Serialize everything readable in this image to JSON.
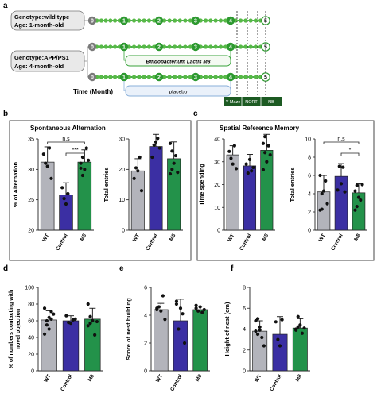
{
  "panel_labels": [
    "a",
    "b",
    "c",
    "d",
    "e",
    "f"
  ],
  "timeline": {
    "group1_lines": [
      "Genotype:wild type",
      "Age: 1-month-old"
    ],
    "group2_lines": [
      "Genotype:APP/PS1",
      "Age: 4-month-old"
    ],
    "time_label": "Time (Month)",
    "treatment_label": "Bifidobacterium Lactis M8",
    "placebo_label": "placebo",
    "test_labels": [
      "Y Maze",
      "NORT",
      "NB"
    ],
    "month_labels": [
      "0",
      "1",
      "2",
      "3",
      "4",
      "5"
    ],
    "colors": {
      "line": "#2e9e35",
      "dot": "#57b947",
      "node": "#2d9930",
      "gray": "#7a7a7a",
      "dark_green": "#1c5a22"
    }
  },
  "section_titles": {
    "b": "Spontaneous Alternation",
    "c": "Spatial Reference Memory"
  },
  "significance": {
    "ns": "n.s",
    "b_stars": "***",
    "c_star": "*"
  },
  "bar_colors": {
    "WT": "#b3b4bb",
    "Control": "#3b2fa3",
    "M8": "#23924a"
  },
  "chart_data": [
    {
      "id": "b1",
      "type": "bar",
      "categories": [
        "WT",
        "Control",
        "M8"
      ],
      "values": [
        31.2,
        25.8,
        31.2
      ],
      "errors": [
        2.5,
        2.0,
        2.0
      ],
      "ylabel": "% of Alternation",
      "ylim": [
        20,
        35
      ],
      "yticks": [
        20,
        25,
        30,
        35
      ],
      "points": [
        [
          32.5,
          31,
          30.5,
          33.5,
          28.5
        ],
        [
          27,
          25.2,
          24.3,
          26
        ],
        [
          31,
          32,
          30,
          33.5,
          31.5,
          30.2,
          29
        ]
      ]
    },
    {
      "id": "b2",
      "type": "bar",
      "categories": [
        "WT",
        "Control",
        "M8"
      ],
      "values": [
        19.5,
        27.5,
        23.5
      ],
      "errors": [
        4,
        4.5,
        5.5
      ],
      "ylabel": "Total entries",
      "ylim": [
        0,
        30
      ],
      "yticks": [
        0,
        10,
        20,
        30
      ],
      "points": [
        [
          17,
          20.5,
          19.5,
          24,
          13
        ],
        [
          24,
          28,
          29,
          30.2,
          27
        ],
        [
          18.5,
          26,
          22,
          24.5,
          19,
          28.5,
          20
        ]
      ]
    },
    {
      "id": "c1",
      "type": "bar",
      "categories": [
        "WT",
        "Control",
        "M8"
      ],
      "values": [
        33,
        28.2,
        35
      ],
      "errors": [
        4,
        5,
        8
      ],
      "ylabel": "Time spending",
      "ylim": [
        0,
        40
      ],
      "yticks": [
        0,
        10,
        20,
        30,
        40
      ],
      "points": [
        [
          34.5,
          31.5,
          29,
          37,
          27
        ],
        [
          29,
          25,
          31,
          26,
          27.5
        ],
        [
          38,
          34,
          30,
          37,
          33,
          26.5,
          41
        ]
      ]
    },
    {
      "id": "c2",
      "type": "bar",
      "categories": [
        "WT",
        "Control",
        "M8"
      ],
      "values": [
        4.2,
        5.9,
        4.1
      ],
      "errors": [
        1.8,
        1.4,
        1.0
      ],
      "ylabel": "Total entries",
      "ylim": [
        0,
        10
      ],
      "yticks": [
        0,
        2,
        4,
        6,
        8,
        10
      ],
      "points": [
        [
          2.2,
          2.3,
          4.3,
          5.4,
          2.9,
          6.0,
          4.0
        ],
        [
          4.4,
          7.0,
          5.1,
          6.9,
          4.2
        ],
        [
          4.3,
          2.6,
          3.6,
          3.3,
          5.0,
          2.2,
          4.9
        ]
      ]
    },
    {
      "id": "d",
      "type": "bar",
      "categories": [
        "WT",
        "Control",
        "M8"
      ],
      "values": [
        61,
        60,
        62
      ],
      "errors": [
        11,
        6,
        13
      ],
      "ylabel": "% of numbers contacting with novel objection",
      "ylim": [
        0,
        100
      ],
      "yticks": [
        0,
        20,
        40,
        60,
        80,
        100
      ],
      "points": [
        [
          75,
          60,
          50,
          71,
          68,
          44,
          55,
          64,
          62
        ],
        [
          66,
          58,
          57,
          61,
          62
        ],
        [
          80,
          57,
          60,
          43,
          59,
          54,
          65
        ]
      ]
    },
    {
      "id": "e",
      "type": "bar",
      "categories": [
        "WT",
        "Control",
        "M8"
      ],
      "values": [
        4.4,
        3.6,
        4.4
      ],
      "errors": [
        0.45,
        1.55,
        0.25
      ],
      "ylabel": "Score of nest building",
      "ylim": [
        0,
        6
      ],
      "yticks": [
        0,
        2,
        4,
        6
      ],
      "points": [
        [
          4.5,
          4.6,
          4.3,
          5.4,
          3.7,
          4.4
        ],
        [
          5.0,
          3.0,
          4.5,
          4.1,
          2.0,
          4.8
        ],
        [
          4.5,
          4.3,
          4.6,
          4.2,
          4.4,
          4.7
        ]
      ]
    },
    {
      "id": "f",
      "type": "bar",
      "categories": [
        "WT",
        "Control",
        "M8"
      ],
      "values": [
        3.8,
        3.5,
        4.1
      ],
      "errors": [
        1.0,
        1.7,
        0.9
      ],
      "ylabel": "Height of nest (cm)",
      "ylim": [
        0,
        8
      ],
      "yticks": [
        0,
        2,
        4,
        6,
        8
      ],
      "points": [
        [
          4.8,
          3.5,
          4.2,
          3.2,
          2.4,
          3.8,
          5.0,
          3.9
        ],
        [
          4.7,
          3.0,
          2.4,
          4.9
        ],
        [
          4.0,
          5.2,
          4.4,
          3.6,
          4.1,
          3.9,
          4.2
        ]
      ]
    }
  ]
}
